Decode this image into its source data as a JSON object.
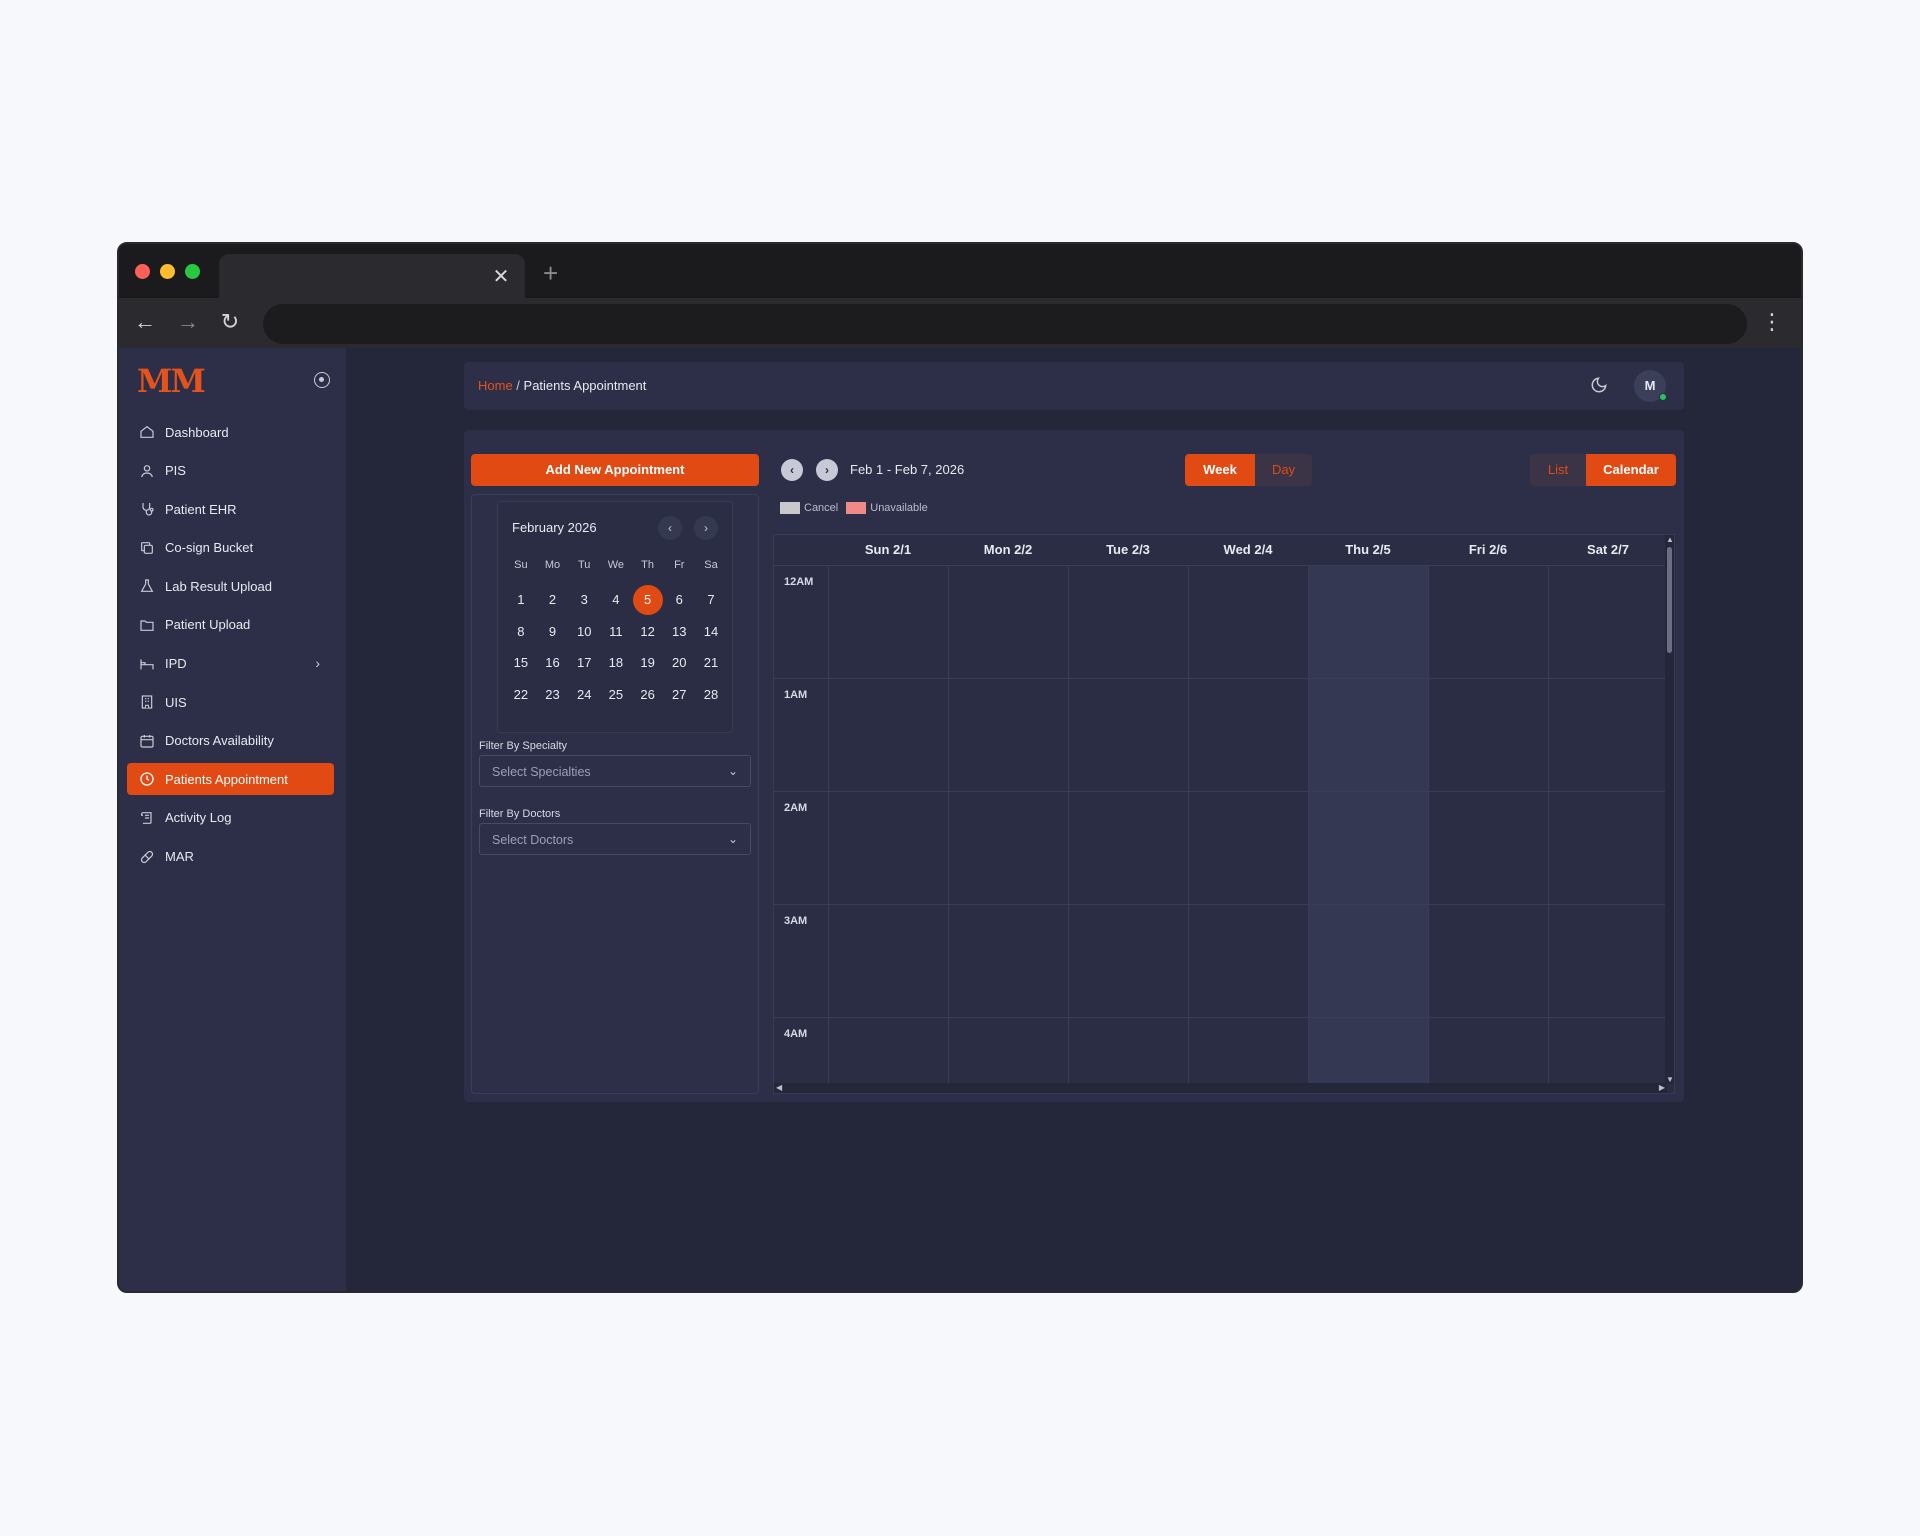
{
  "browser": {
    "tab_close": "✕",
    "new_tab": "+",
    "back": "←",
    "forward": "→",
    "reload": "↻",
    "menu": "⋮"
  },
  "sidebar": {
    "logo": "MM",
    "items": [
      {
        "label": "Dashboard",
        "icon": "home-icon"
      },
      {
        "label": "PIS",
        "icon": "user-icon"
      },
      {
        "label": "Patient EHR",
        "icon": "stethoscope-icon"
      },
      {
        "label": "Co-sign Bucket",
        "icon": "copy-icon"
      },
      {
        "label": "Lab Result Upload",
        "icon": "flask-icon"
      },
      {
        "label": "Patient Upload",
        "icon": "folder-icon"
      },
      {
        "label": "IPD",
        "icon": "bed-icon",
        "has_submenu": true
      },
      {
        "label": "UIS",
        "icon": "building-icon"
      },
      {
        "label": "Doctors Availability",
        "icon": "calendar-icon"
      },
      {
        "label": "Patients Appointment",
        "icon": "clock-icon",
        "active": true
      },
      {
        "label": "Activity Log",
        "icon": "scroll-icon"
      },
      {
        "label": "MAR",
        "icon": "pill-icon"
      }
    ]
  },
  "header": {
    "breadcrumb_home": "Home",
    "breadcrumb_sep": " / ",
    "breadcrumb_current": "Patients Appointment",
    "avatar_initial": "M"
  },
  "appointments": {
    "add_button": "Add New Appointment",
    "mini_calendar": {
      "title": "February 2026",
      "prev": "‹",
      "next": "›",
      "weekdays": [
        "Su",
        "Mo",
        "Tu",
        "We",
        "Th",
        "Fr",
        "Sa"
      ],
      "weeks": [
        [
          "1",
          "2",
          "3",
          "4",
          "5",
          "6",
          "7"
        ],
        [
          "8",
          "9",
          "10",
          "11",
          "12",
          "13",
          "14"
        ],
        [
          "15",
          "16",
          "17",
          "18",
          "19",
          "20",
          "21"
        ],
        [
          "22",
          "23",
          "24",
          "25",
          "26",
          "27",
          "28"
        ]
      ],
      "selected_day": "5"
    },
    "filter_specialty_label": "Filter By Specialty",
    "filter_specialty_placeholder": "Select Specialties",
    "filter_doctors_label": "Filter By Doctors",
    "filter_doctors_placeholder": "Select Doctors",
    "range_prev": "‹",
    "range_next": "›",
    "date_range": "Feb 1 - Feb 7, 2026",
    "view_week": "Week",
    "view_day": "Day",
    "mode_list": "List",
    "mode_calendar": "Calendar",
    "legend": [
      {
        "label": "Cancel",
        "color": "#c9c9cc"
      },
      {
        "label": "Unavailable",
        "color": "#f08a8a"
      }
    ],
    "days": [
      "Sun 2/1",
      "Mon 2/2",
      "Tue 2/3",
      "Wed 2/4",
      "Thu 2/5",
      "Fri 2/6",
      "Sat 2/7"
    ],
    "today_column": "Thu 2/5",
    "hours": [
      "12AM",
      "1AM",
      "2AM",
      "3AM",
      "4AM"
    ]
  },
  "colors": {
    "accent": "#e24a14",
    "sidebar_bg": "#2c2f47",
    "page_bg": "#24263a"
  }
}
